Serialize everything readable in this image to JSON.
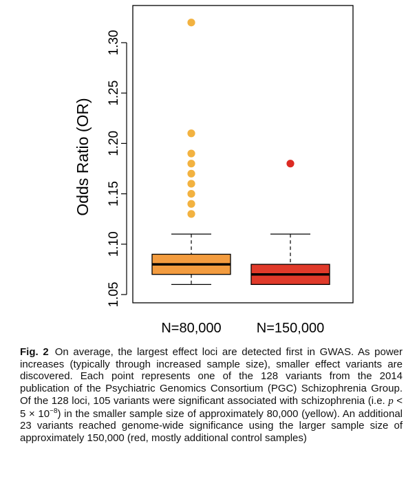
{
  "chart_data": {
    "type": "box",
    "ylabel": "Odds Ratio (OR)",
    "ylim": [
      1.05,
      1.33
    ],
    "yticks": [
      "1.05",
      "1.10",
      "1.15",
      "1.20",
      "1.25",
      "1.30"
    ],
    "grid": false,
    "categories": [
      "N=80,000",
      "N=150,000"
    ],
    "series": [
      {
        "name": "N=80,000",
        "color": "#F39C3F",
        "outlier_color": "#F2B240",
        "whisker_low": 1.06,
        "q1": 1.07,
        "median": 1.08,
        "q3": 1.09,
        "whisker_high": 1.11,
        "outliers": [
          1.13,
          1.14,
          1.15,
          1.16,
          1.17,
          1.18,
          1.19,
          1.21,
          1.32
        ]
      },
      {
        "name": "N=150,000",
        "color": "#E03A2A",
        "outlier_color": "#DC2A23",
        "whisker_low": 1.06,
        "q1": 1.06,
        "median": 1.07,
        "q3": 1.08,
        "whisker_high": 1.11,
        "outliers": [
          1.18
        ]
      }
    ]
  },
  "caption": {
    "label": "Fig. 2",
    "text_before": "On average, the largest effect loci are detected first in GWAS. As power increases (typically through increased sample size), smaller effect variants are discovered. Each point represents one of the 128 variants from the 2014 publication of the Psychiatric Genomics Consortium (PGC) Schizophrenia Group. Of the 128 loci, 105 variants were significant associated with schizophrenia (i.e. ",
    "p_symbol": "p",
    "threshold_base": " < 5 × 10",
    "threshold_exp": "−8",
    "text_after": ") in the smaller sample size of approximately 80,000 (yellow). An additional 23 variants reached genome-wide significance using the larger sample size of approximately 150,000 (red, mostly additional control samples)"
  }
}
